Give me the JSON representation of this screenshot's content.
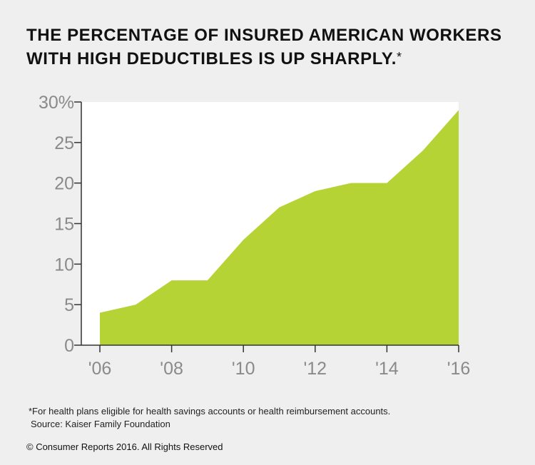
{
  "title_lines": [
    "THE PERCENTAGE OF INSURED AMERICAN WORKERS",
    "WITH HIGH DEDUCTIBLES IS UP SHARPLY."
  ],
  "title_marker": "*",
  "chart_data": {
    "type": "area",
    "title": "THE PERCENTAGE OF INSURED AMERICAN WORKERS WITH HIGH DEDUCTIBLES IS UP SHARPLY.*",
    "x": [
      2006,
      2007,
      2008,
      2009,
      2010,
      2011,
      2012,
      2013,
      2014,
      2015,
      2016
    ],
    "series": [
      {
        "name": "Insured workers with high deductibles (%)",
        "values": [
          4,
          5,
          8,
          8,
          13,
          17,
          19,
          20,
          20,
          24,
          29
        ]
      }
    ],
    "xlim": [
      2006,
      2016
    ],
    "ylim": [
      0,
      30
    ],
    "yticks": [
      0,
      5,
      10,
      15,
      20,
      25,
      30
    ],
    "ytick_labels": [
      "0",
      "5",
      "10",
      "15",
      "20",
      "25",
      "30%"
    ],
    "xticks": [
      2006,
      2008,
      2010,
      2012,
      2014,
      2016
    ],
    "xtick_labels": [
      "'06",
      "'08",
      "'10",
      "'12",
      "'14",
      "'16"
    ],
    "xlabel": "",
    "ylabel": "",
    "grid": false,
    "fill_color": "#b5d334",
    "plot_bg": "#ffffff",
    "axis_color": "#333333",
    "tick_label_color": "#8a8a8a"
  },
  "footnote": {
    "note": "*For health plans eligible for health savings accounts or health reimbursement accounts.",
    "source": "Source: Kaiser Family Foundation"
  },
  "copyright": "© Consumer Reports 2016. All Rights Reserved"
}
